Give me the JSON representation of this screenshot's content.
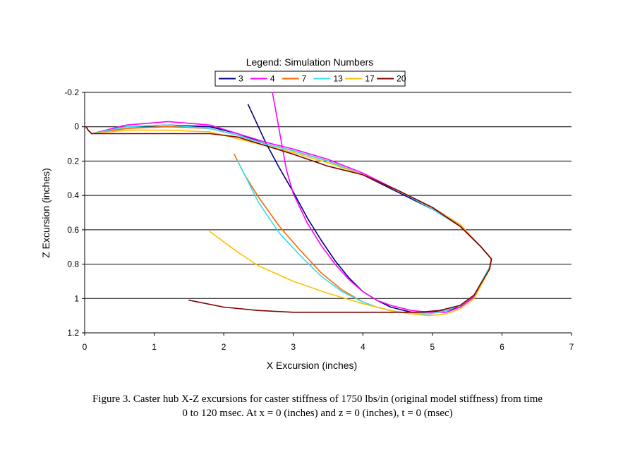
{
  "chart_data": {
    "type": "line",
    "title": "",
    "xlabel": "X Excursion (inches)",
    "ylabel": "Z Excursion (inches)",
    "xlim": [
      0,
      7
    ],
    "ylim": [
      -0.2,
      1.2
    ],
    "y_inverted": true,
    "x_ticks": [
      "0",
      "1",
      "2",
      "3",
      "4",
      "5",
      "6",
      "7"
    ],
    "y_ticks": [
      "-0.2",
      "0",
      "0.2",
      "0.4",
      "0.6",
      "0.8",
      "1",
      "1.2"
    ],
    "grid": "horizontal",
    "legend": {
      "title": "Legend: Simulation Numbers",
      "position": "top"
    },
    "series": [
      {
        "name": "3",
        "color": "#000080",
        "x": [
          0.02,
          0.05,
          0.1,
          0.6,
          1.2,
          1.8,
          2.2,
          2.6,
          3.0,
          3.5,
          4.0,
          4.5,
          5.0,
          5.4,
          5.7,
          5.85,
          5.82,
          5.6,
          5.4,
          5.2,
          4.95,
          4.7,
          4.4,
          4.2,
          4.0,
          3.8,
          3.6,
          3.4,
          3.2,
          3.0,
          2.8,
          2.6,
          2.35
        ],
        "y": [
          0.0,
          0.02,
          0.04,
          0.0,
          -0.01,
          0.0,
          0.04,
          0.1,
          0.14,
          0.2,
          0.28,
          0.38,
          0.48,
          0.58,
          0.7,
          0.77,
          0.83,
          0.99,
          1.05,
          1.07,
          1.08,
          1.08,
          1.05,
          1.01,
          0.96,
          0.88,
          0.78,
          0.66,
          0.53,
          0.38,
          0.24,
          0.09,
          -0.13
        ]
      },
      {
        "name": "4",
        "color": "#ff00ff",
        "x": [
          0.02,
          0.05,
          0.1,
          0.6,
          1.2,
          1.8,
          2.2,
          2.6,
          3.0,
          3.5,
          4.0,
          4.5,
          5.0,
          5.4,
          5.7,
          5.85,
          5.82,
          5.6,
          5.4,
          5.2,
          4.95,
          4.7,
          4.4,
          4.2,
          4.0,
          3.8,
          3.6,
          3.4,
          3.2,
          3.0,
          2.9,
          2.7
        ],
        "y": [
          0.0,
          0.02,
          0.04,
          -0.01,
          -0.03,
          -0.01,
          0.04,
          0.09,
          0.13,
          0.19,
          0.27,
          0.37,
          0.47,
          0.57,
          0.7,
          0.77,
          0.82,
          0.99,
          1.05,
          1.08,
          1.08,
          1.07,
          1.04,
          1.01,
          0.96,
          0.89,
          0.8,
          0.69,
          0.56,
          0.39,
          0.25,
          -0.2
        ]
      },
      {
        "name": "7",
        "color": "#ff6600",
        "x": [
          0.02,
          0.05,
          0.1,
          0.6,
          1.2,
          1.8,
          2.2,
          2.6,
          3.0,
          3.5,
          4.0,
          4.5,
          5.0,
          5.4,
          5.7,
          5.85,
          5.82,
          5.6,
          5.4,
          5.2,
          4.95,
          4.7,
          4.4,
          4.2,
          4.0,
          3.7,
          3.4,
          3.1,
          2.8,
          2.5,
          2.3,
          2.15
        ],
        "y": [
          0.0,
          0.02,
          0.04,
          0.01,
          0.0,
          0.01,
          0.05,
          0.1,
          0.14,
          0.2,
          0.28,
          0.37,
          0.47,
          0.58,
          0.7,
          0.77,
          0.82,
          0.98,
          1.04,
          1.07,
          1.09,
          1.09,
          1.07,
          1.05,
          1.02,
          0.95,
          0.85,
          0.72,
          0.58,
          0.41,
          0.28,
          0.16
        ]
      },
      {
        "name": "13",
        "color": "#33ddee",
        "x": [
          0.02,
          0.05,
          0.1,
          0.6,
          1.2,
          1.8,
          2.2,
          2.6,
          3.0,
          3.5,
          4.0,
          4.5,
          5.0,
          5.4,
          5.7,
          5.85,
          5.82,
          5.6,
          5.4,
          5.2,
          4.95,
          4.7,
          4.4,
          4.2,
          4.0,
          3.7,
          3.4,
          3.1,
          2.8,
          2.5,
          2.2
        ],
        "y": [
          0.0,
          0.02,
          0.04,
          0.0,
          -0.01,
          0.01,
          0.05,
          0.1,
          0.14,
          0.2,
          0.28,
          0.37,
          0.48,
          0.58,
          0.7,
          0.77,
          0.82,
          0.98,
          1.04,
          1.07,
          1.09,
          1.09,
          1.07,
          1.05,
          1.02,
          0.96,
          0.87,
          0.75,
          0.62,
          0.44,
          0.2
        ]
      },
      {
        "name": "17",
        "color": "#ffc000",
        "x": [
          0.02,
          0.05,
          0.1,
          0.6,
          1.2,
          1.8,
          2.2,
          2.6,
          3.0,
          3.5,
          4.0,
          4.5,
          5.0,
          5.4,
          5.7,
          5.85,
          5.82,
          5.6,
          5.4,
          5.2,
          4.95,
          4.7,
          4.4,
          4.0,
          3.5,
          3.0,
          2.5,
          2.2,
          1.8
        ],
        "y": [
          0.0,
          0.02,
          0.04,
          0.02,
          0.02,
          0.03,
          0.07,
          0.11,
          0.15,
          0.21,
          0.28,
          0.37,
          0.47,
          0.57,
          0.7,
          0.77,
          0.83,
          1.0,
          1.06,
          1.09,
          1.1,
          1.09,
          1.07,
          1.03,
          0.97,
          0.9,
          0.81,
          0.73,
          0.61
        ]
      },
      {
        "name": "20",
        "color": "#800000",
        "x": [
          0.02,
          0.05,
          0.1,
          0.6,
          1.2,
          1.8,
          2.2,
          2.6,
          3.0,
          3.5,
          4.0,
          4.5,
          5.0,
          5.4,
          5.7,
          5.85,
          5.82,
          5.6,
          5.4,
          5.1,
          4.8,
          4.5,
          4.0,
          3.5,
          3.0,
          2.5,
          2.0,
          1.5
        ],
        "y": [
          0.0,
          0.02,
          0.04,
          0.04,
          0.04,
          0.04,
          0.06,
          0.11,
          0.16,
          0.23,
          0.28,
          0.37,
          0.47,
          0.58,
          0.7,
          0.77,
          0.83,
          0.98,
          1.04,
          1.07,
          1.08,
          1.08,
          1.08,
          1.08,
          1.08,
          1.07,
          1.05,
          1.01
        ]
      }
    ]
  },
  "caption": {
    "line1": "Figure 3. Caster hub X-Z excursions for caster stiffness of 1750 lbs/in (original model stiffness) from time",
    "line2": "0 to 120 msec. At x = 0 (inches) and z = 0 (inches), t = 0 (msec)"
  }
}
